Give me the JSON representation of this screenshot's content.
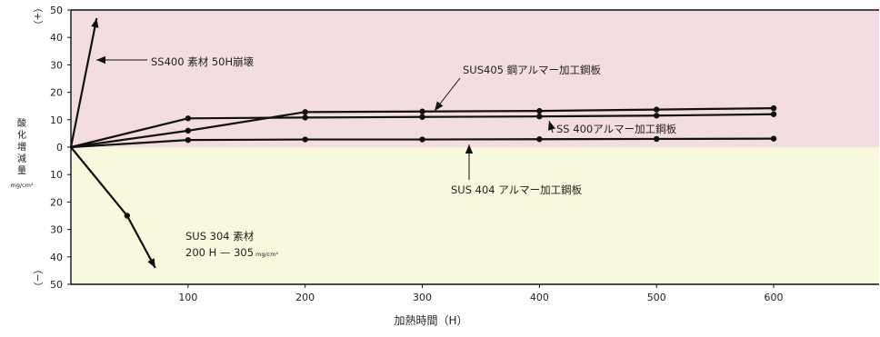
{
  "chart_data": {
    "type": "line",
    "xlabel": "加熱時間（H）",
    "ylabel": "酸化増減量",
    "yunit": "mg/cm²",
    "sign_top": "（+）",
    "sign_bottom": "（−）",
    "xlim": [
      0,
      690
    ],
    "ylim": [
      -50,
      50
    ],
    "x_ticks": [
      100,
      200,
      300,
      400,
      500,
      600
    ],
    "y_tick_labels": [
      "50",
      "40",
      "30",
      "20",
      "10",
      "0",
      "10",
      "20",
      "30",
      "40",
      "50"
    ],
    "grid": false,
    "background": {
      "positive_region": "#f3dde0",
      "negative_region": "#f8f8dc"
    },
    "series": [
      {
        "x": [
          0,
          100,
          200,
          300,
          400,
          500,
          600
        ],
        "y": [
          0,
          10.5,
          10.8,
          11,
          11.2,
          11.5,
          12
        ],
        "marker": true
      },
      {
        "x": [
          0,
          100,
          200,
          300,
          400,
          500,
          600
        ],
        "y": [
          0,
          6,
          12.8,
          13,
          13.2,
          13.7,
          14.2
        ],
        "marker": true
      },
      {
        "x": [
          0,
          100,
          200,
          300,
          400,
          500,
          600
        ],
        "y": [
          0,
          2.6,
          2.8,
          2.8,
          2.9,
          3,
          3.1
        ],
        "marker": true
      },
      {
        "x": [
          0,
          22
        ],
        "y": [
          0,
          47
        ],
        "marker": false,
        "arrow": true
      },
      {
        "x": [
          0,
          48,
          72
        ],
        "y": [
          0,
          -25,
          -44
        ],
        "marker": true,
        "arrow": true
      }
    ],
    "annotations": [
      {
        "text": "SS400 素材 50H崩壊"
      },
      {
        "text": "SUS405 鋼アルマー加工鋼板"
      },
      {
        "text": "SS 400アルマー加工鋼板"
      },
      {
        "text": "SUS 404 アルマー加工鋼板"
      },
      {
        "text": "SUS 304 素材"
      },
      {
        "text": "200 H — 305",
        "unit": "mg/cm²"
      }
    ]
  }
}
